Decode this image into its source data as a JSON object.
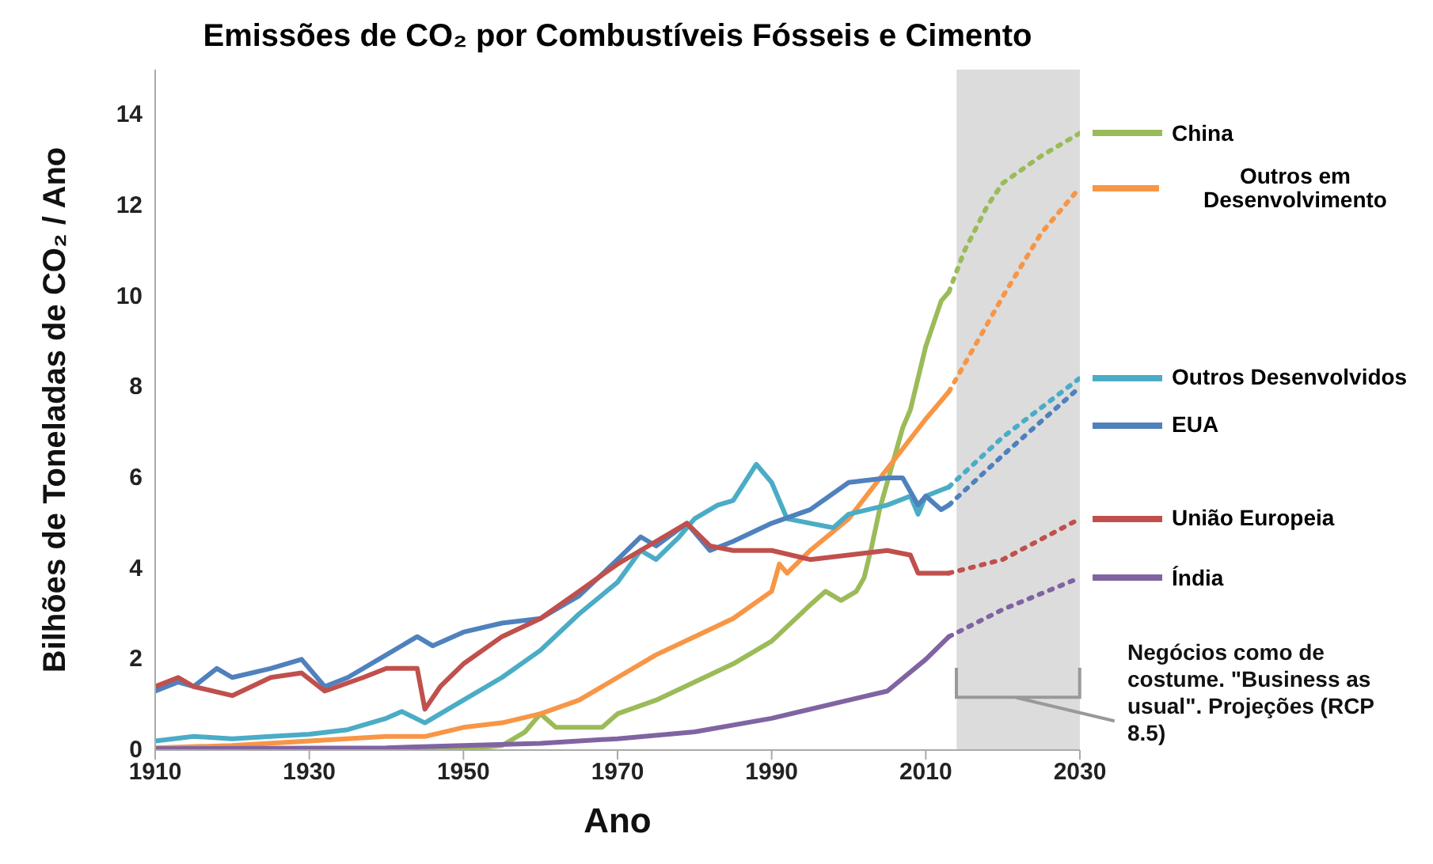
{
  "chart_data": {
    "type": "line",
    "title": "Emissões de CO₂ por Combustíveis Fósseis e Cimento",
    "xlabel": "Ano",
    "ylabel": "Bilhões de Toneladas de CO₂ / Ano",
    "xlim": [
      1910,
      2030
    ],
    "xticks": [
      1910,
      1930,
      1950,
      1970,
      1990,
      2010,
      2030
    ],
    "ylim": [
      0,
      15
    ],
    "yticks": [
      0,
      2,
      4,
      6,
      8,
      10,
      12,
      14
    ],
    "grid": false,
    "legend": "right",
    "marker": "none",
    "line_style": "solid",
    "bands": [
      {
        "axis": "x",
        "from": 2014,
        "to": 2030,
        "color": "#dcdcdc"
      }
    ],
    "annotations": [
      "Negócios como de costume. \"Business as usual\". Projeções (RCP 8.5)"
    ],
    "series": [
      {
        "name": "China",
        "color": "#9bbb59",
        "x": [
          1910,
          1950,
          1955,
          1958,
          1960,
          1962,
          1965,
          1968,
          1970,
          1975,
          1980,
          1985,
          1990,
          1995,
          1997,
          1999,
          2001,
          2002,
          2003,
          2004,
          2005,
          2006,
          2007,
          2008,
          2010,
          2012,
          2013
        ],
        "values": [
          0,
          0.02,
          0.1,
          0.4,
          0.8,
          0.5,
          0.5,
          0.5,
          0.8,
          1.1,
          1.5,
          1.9,
          2.4,
          3.2,
          3.5,
          3.3,
          3.5,
          3.8,
          4.5,
          5.3,
          5.9,
          6.5,
          7.1,
          7.5,
          8.9,
          9.9,
          10.1
        ]
      },
      {
        "name": "Outros em Desenvolvimento",
        "color": "#f79646",
        "x": [
          1910,
          1920,
          1930,
          1940,
          1945,
          1950,
          1955,
          1960,
          1965,
          1970,
          1975,
          1980,
          1985,
          1990,
          1991,
          1992,
          1995,
          2000,
          2005,
          2010,
          2013
        ],
        "values": [
          0.05,
          0.1,
          0.2,
          0.3,
          0.3,
          0.5,
          0.6,
          0.8,
          1.1,
          1.6,
          2.1,
          2.5,
          2.9,
          3.5,
          4.1,
          3.9,
          4.4,
          5.1,
          6.2,
          7.3,
          7.9
        ]
      },
      {
        "name": "Outros Desenvolvidos",
        "color": "#4bacc6",
        "x": [
          1910,
          1915,
          1920,
          1925,
          1930,
          1935,
          1940,
          1942,
          1945,
          1950,
          1955,
          1960,
          1965,
          1970,
          1973,
          1975,
          1978,
          1980,
          1983,
          1985,
          1988,
          1990,
          1992,
          1995,
          1998,
          2000,
          2005,
          2008,
          2009,
          2010,
          2013
        ],
        "values": [
          0.2,
          0.3,
          0.25,
          0.3,
          0.35,
          0.45,
          0.7,
          0.85,
          0.6,
          1.1,
          1.6,
          2.2,
          3.0,
          3.7,
          4.4,
          4.2,
          4.7,
          5.1,
          5.4,
          5.5,
          6.3,
          5.9,
          5.1,
          5.0,
          4.9,
          5.2,
          5.4,
          5.6,
          5.2,
          5.6,
          5.8
        ]
      },
      {
        "name": "EUA",
        "color": "#4f81bd",
        "x": [
          1910,
          1913,
          1915,
          1918,
          1920,
          1925,
          1929,
          1932,
          1935,
          1940,
          1944,
          1946,
          1950,
          1955,
          1960,
          1965,
          1970,
          1973,
          1975,
          1979,
          1982,
          1985,
          1990,
          1995,
          2000,
          2005,
          2007,
          2009,
          2010,
          2012,
          2013
        ],
        "values": [
          1.3,
          1.5,
          1.4,
          1.8,
          1.6,
          1.8,
          2.0,
          1.4,
          1.6,
          2.1,
          2.5,
          2.3,
          2.6,
          2.8,
          2.9,
          3.4,
          4.2,
          4.7,
          4.5,
          5.0,
          4.4,
          4.6,
          5.0,
          5.3,
          5.9,
          6.0,
          6.0,
          5.4,
          5.6,
          5.3,
          5.4
        ]
      },
      {
        "name": "União Europeia",
        "color": "#c0504d",
        "x": [
          1910,
          1913,
          1915,
          1920,
          1925,
          1929,
          1932,
          1937,
          1940,
          1944,
          1945,
          1947,
          1950,
          1955,
          1960,
          1965,
          1970,
          1975,
          1979,
          1982,
          1985,
          1990,
          1995,
          2000,
          2005,
          2008,
          2009,
          2013
        ],
        "values": [
          1.4,
          1.6,
          1.4,
          1.2,
          1.6,
          1.7,
          1.3,
          1.6,
          1.8,
          1.8,
          0.9,
          1.4,
          1.9,
          2.5,
          2.9,
          3.5,
          4.1,
          4.6,
          5.0,
          4.5,
          4.4,
          4.4,
          4.2,
          4.3,
          4.4,
          4.3,
          3.9,
          3.9
        ]
      },
      {
        "name": "Índia",
        "color": "#8064a2",
        "x": [
          1910,
          1940,
          1950,
          1960,
          1970,
          1980,
          1990,
          2000,
          2005,
          2010,
          2013
        ],
        "values": [
          0.03,
          0.05,
          0.1,
          0.15,
          0.25,
          0.4,
          0.7,
          1.1,
          1.3,
          2.0,
          2.5
        ]
      },
      {
        "color": "#9bbb59",
        "line_style": "dotted",
        "x": [
          2013,
          2015,
          2018,
          2020,
          2025,
          2030
        ],
        "values": [
          10.1,
          11,
          12,
          12.5,
          13.1,
          13.6
        ]
      },
      {
        "color": "#f79646",
        "line_style": "dotted",
        "x": [
          2013,
          2020,
          2025,
          2030
        ],
        "values": [
          7.9,
          10,
          11.4,
          12.4
        ]
      },
      {
        "color": "#4bacc6",
        "line_style": "dotted",
        "x": [
          2013,
          2020,
          2030
        ],
        "values": [
          5.8,
          6.9,
          8.2
        ]
      },
      {
        "color": "#4f81bd",
        "line_style": "dotted",
        "x": [
          2013,
          2020,
          2030
        ],
        "values": [
          5.4,
          6.5,
          8.0
        ]
      },
      {
        "color": "#c0504d",
        "line_style": "dotted",
        "x": [
          2013,
          2020,
          2030
        ],
        "values": [
          3.9,
          4.2,
          5.1
        ]
      },
      {
        "color": "#8064a2",
        "line_style": "dotted",
        "x": [
          2013,
          2020,
          2030
        ],
        "values": [
          2.5,
          3.1,
          3.8
        ]
      }
    ]
  }
}
